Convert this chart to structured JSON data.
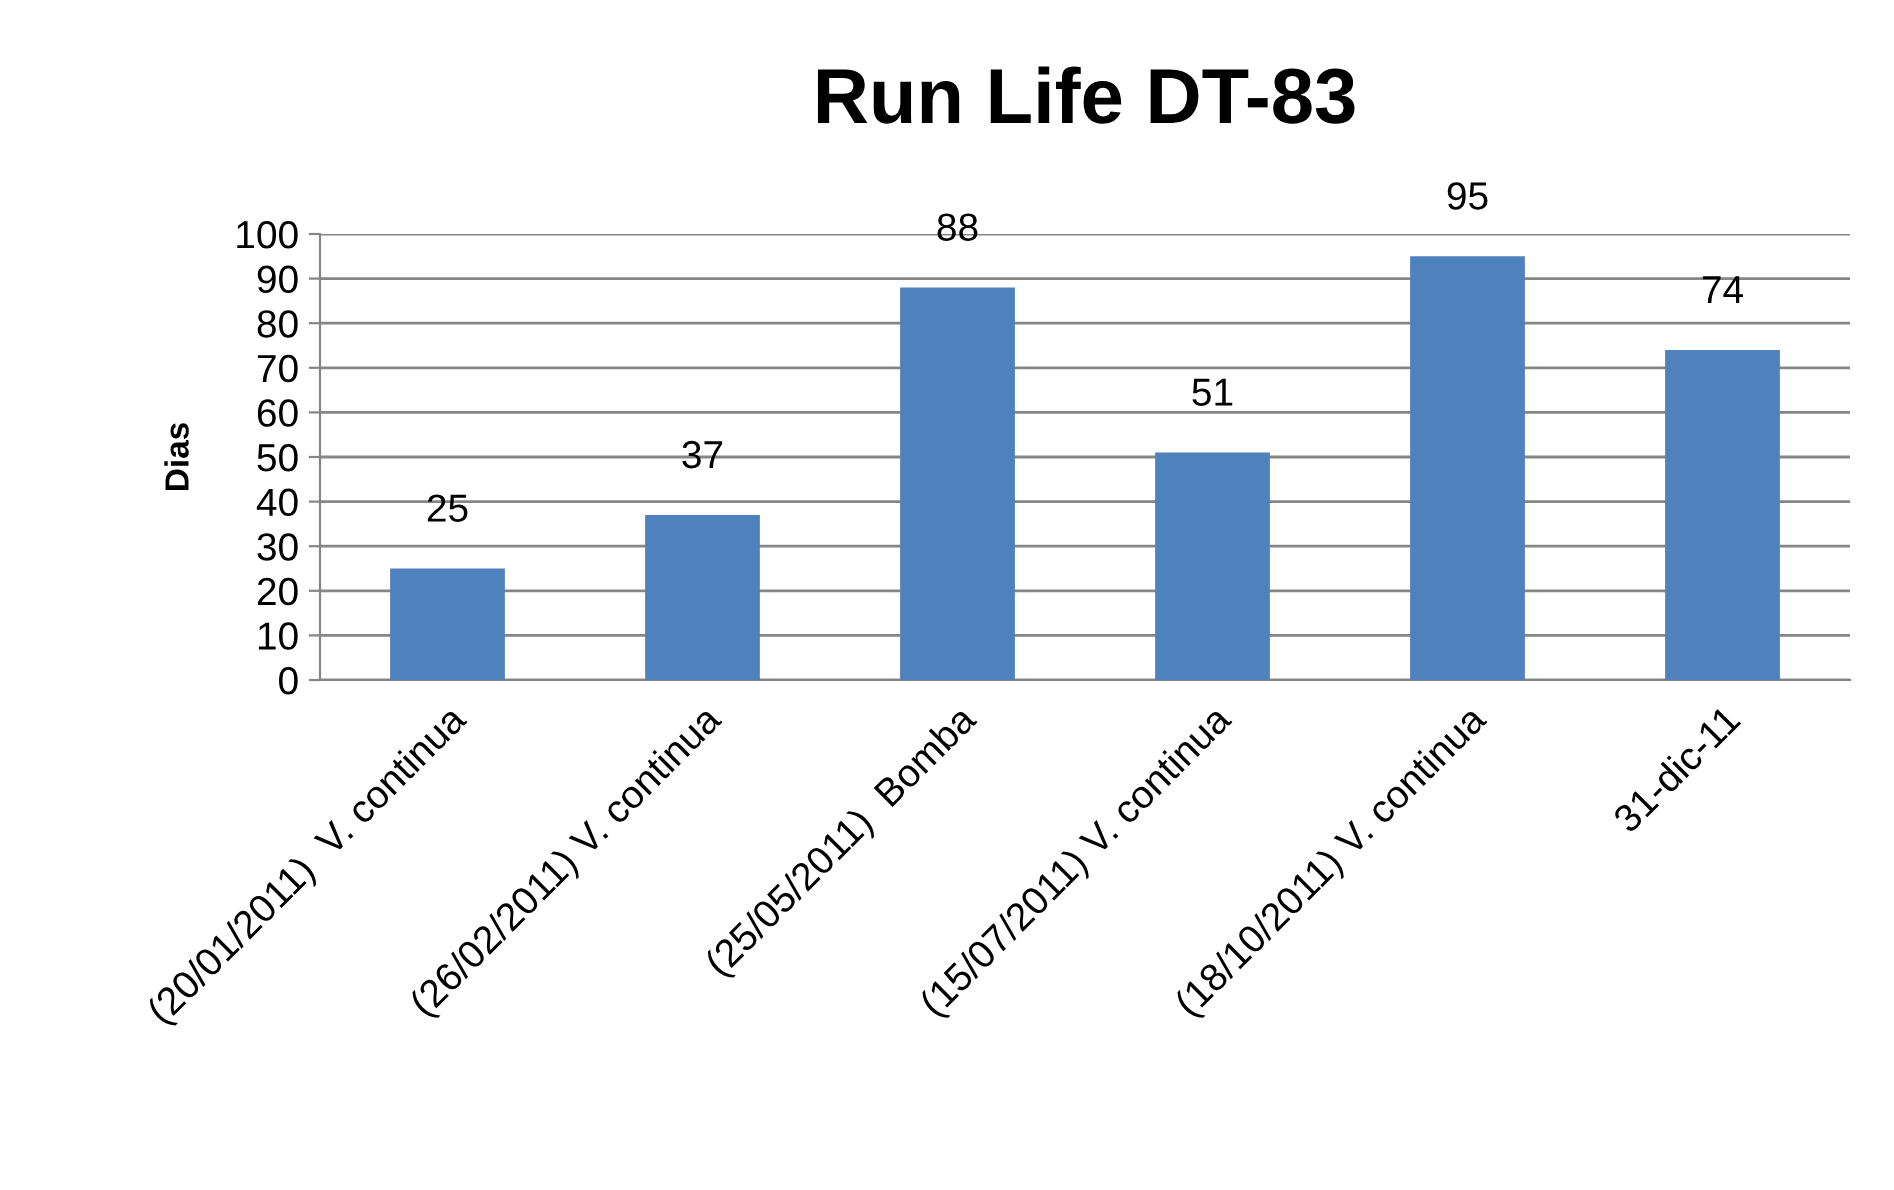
{
  "chart_data": {
    "type": "bar",
    "title": "Run Life DT-83",
    "ylabel": "Dias",
    "categories": [
      "(20/01/2011)  V. continua",
      "(26/02/2011) V. continua",
      "(25/05/2011)  Bomba",
      "(15/07/2011) V. continua",
      "(18/10/2011) V. continua",
      "31-dic-11"
    ],
    "values": [
      25,
      37,
      88,
      51,
      95,
      74
    ],
    "color": "#4f81bd",
    "ylim": [
      0,
      100
    ],
    "yticks": [
      0,
      10,
      20,
      30,
      40,
      50,
      60,
      70,
      80,
      90,
      100
    ],
    "grid": "y",
    "data_labels": true
  }
}
